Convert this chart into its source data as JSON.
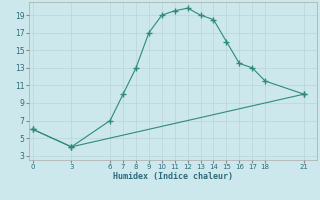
{
  "series1_x": [
    0,
    3,
    6,
    7,
    8,
    9,
    10,
    11,
    12,
    13,
    14,
    15,
    16,
    17,
    18,
    21
  ],
  "series1_y": [
    6,
    4,
    7,
    10,
    13,
    17,
    19,
    19.5,
    19.8,
    19,
    18.5,
    16,
    13.5,
    13,
    11.5,
    10
  ],
  "series2_x": [
    0,
    3,
    21
  ],
  "series2_y": [
    6,
    4,
    10
  ],
  "line_color": "#2e8b7a",
  "bg_color": "#cce8ec",
  "grid_major_color": "#b8d4d8",
  "grid_minor_color": "#d4e8ec",
  "xlabel": "Humidex (Indice chaleur)",
  "xticks": [
    0,
    3,
    6,
    7,
    8,
    9,
    10,
    11,
    12,
    13,
    14,
    15,
    16,
    17,
    18,
    21
  ],
  "yticks": [
    3,
    5,
    7,
    9,
    11,
    13,
    15,
    17,
    19
  ],
  "xlim": [
    -0.3,
    22
  ],
  "ylim": [
    2.5,
    20.5
  ]
}
